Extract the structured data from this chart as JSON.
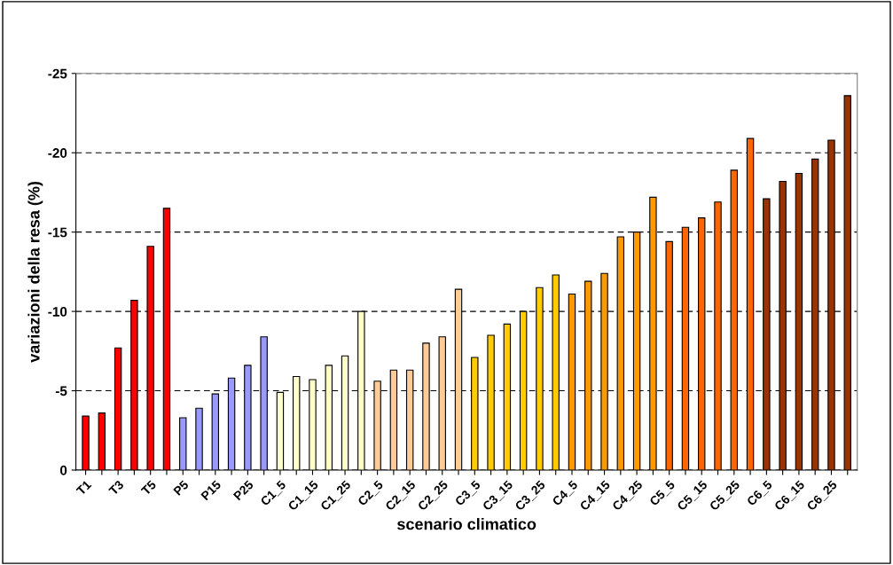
{
  "chart_data": {
    "type": "bar",
    "xlabel": "scenario climatico",
    "ylabel": "variazioni della resa (%)",
    "categories": [
      "T1",
      null,
      "T3",
      null,
      "T5",
      null,
      "P5",
      null,
      "P15",
      null,
      "P25",
      null,
      "C1_5",
      null,
      "C1_15",
      null,
      "C1_25",
      null,
      "C2_5",
      null,
      "C2_15",
      null,
      "C2_25",
      null,
      "C3_5",
      null,
      "C3_15",
      null,
      "C3_25",
      null,
      "C4_5",
      null,
      "C4_15",
      null,
      "C4_25",
      null,
      "C5_5",
      null,
      "C5_15",
      null,
      "C5_25",
      null,
      "C6_5",
      null,
      "C6_15",
      null,
      "C6_25",
      null
    ],
    "values": [
      -3.4,
      -3.6,
      -7.7,
      -10.7,
      -14.1,
      -16.5,
      -3.3,
      -3.9,
      -4.8,
      -5.8,
      -6.6,
      -8.4,
      -4.9,
      -5.9,
      -5.7,
      -6.6,
      -7.2,
      -10.0,
      -5.6,
      -6.3,
      -6.3,
      -8.0,
      -8.4,
      -11.4,
      -7.1,
      -8.5,
      -9.2,
      -10.0,
      -11.5,
      -12.3,
      -11.1,
      -11.9,
      -12.4,
      -14.7,
      -15.0,
      -17.2,
      -14.4,
      -15.3,
      -15.9,
      -16.9,
      -18.9,
      -20.9,
      -17.1,
      -18.2,
      -18.7,
      -19.6,
      -20.8,
      -23.6
    ],
    "colors": [
      "#ff0000",
      "#ff0000",
      "#ff0000",
      "#ff0000",
      "#ff0000",
      "#ff0000",
      "#9999ff",
      "#9999ff",
      "#9999ff",
      "#9999ff",
      "#9999ff",
      "#9999ff",
      "#ffffcc",
      "#ffffcc",
      "#ffffcc",
      "#ffffcc",
      "#ffffcc",
      "#ffffcc",
      "#ffcc99",
      "#ffcc99",
      "#ffcc99",
      "#ffcc99",
      "#ffcc99",
      "#ffcc99",
      "#ffcc00",
      "#ffcc00",
      "#ffcc00",
      "#ffcc00",
      "#ffcc00",
      "#ffcc00",
      "#ff9900",
      "#ff9900",
      "#ff9900",
      "#ff9900",
      "#ff9900",
      "#ff9900",
      "#ff6600",
      "#ff6600",
      "#ff6600",
      "#ff6600",
      "#ff6600",
      "#ff6600",
      "#993300",
      "#993300",
      "#993300",
      "#993300",
      "#993300",
      "#993300"
    ],
    "ylim": [
      0,
      -25
    ],
    "yticks": [
      0,
      -5,
      -10,
      -15,
      -20,
      -25
    ],
    "grid": "y"
  }
}
